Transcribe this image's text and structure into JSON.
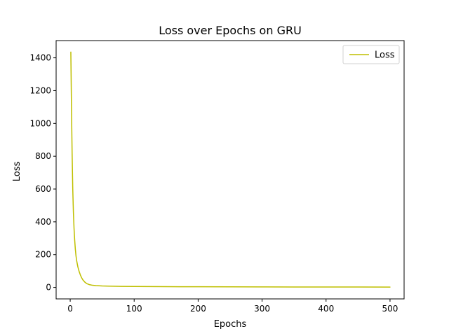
{
  "chart_data": {
    "type": "line",
    "title": "Loss over Epochs on GRU",
    "xlabel": "Epochs",
    "ylabel": "Loss",
    "xlim": [
      -22,
      522
    ],
    "ylim": [
      -70,
      1505
    ],
    "xticks": [
      0,
      100,
      200,
      300,
      400,
      500
    ],
    "yticks": [
      0,
      200,
      400,
      600,
      800,
      1000,
      1200,
      1400
    ],
    "grid": false,
    "legend": {
      "position": "top-right"
    },
    "series": [
      {
        "name": "Loss",
        "color": "#bfbf00",
        "x": [
          1,
          2,
          3,
          4,
          5,
          6,
          7,
          8,
          9,
          10,
          12,
          14,
          16,
          18,
          20,
          23,
          26,
          30,
          35,
          40,
          50,
          60,
          80,
          100,
          150,
          200,
          250,
          300,
          350,
          400,
          450,
          500
        ],
        "y": [
          1435,
          1100,
          820,
          600,
          460,
          360,
          290,
          235,
          195,
          165,
          125,
          97,
          75,
          58,
          45,
          32,
          23,
          17,
          13,
          11,
          9,
          8,
          6.5,
          5.5,
          4.5,
          4,
          3.5,
          3,
          2.8,
          2.5,
          2.3,
          2
        ]
      }
    ]
  }
}
